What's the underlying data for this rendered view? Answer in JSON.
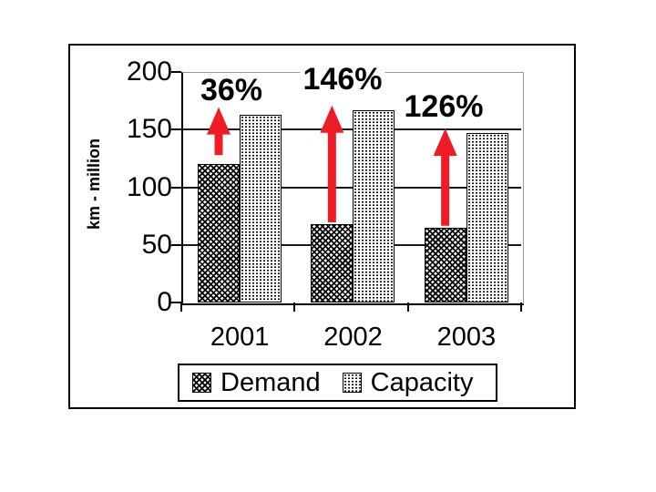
{
  "chart_data": {
    "type": "bar",
    "title": "",
    "categories": [
      "2001",
      "2002",
      "2003"
    ],
    "series": [
      {
        "name": "Demand",
        "values": [
          120,
          68,
          65
        ],
        "pattern": "dark-diagonal-crosshatch"
      },
      {
        "name": "Capacity",
        "values": [
          163,
          167,
          147
        ],
        "pattern": "light-dots"
      }
    ],
    "growth_labels": [
      "36%",
      "146%",
      "126%"
    ],
    "xlabel": "",
    "ylabel": "km - million",
    "yticks": [
      0,
      50,
      100,
      150,
      200
    ],
    "ylim": [
      0,
      200
    ],
    "grid": "horizontal",
    "legend_position": "bottom",
    "legend_entries": [
      "Demand",
      "Capacity"
    ],
    "colors": {
      "arrow": "#ee1c25",
      "text": "#000000",
      "gridline": "#1a1a1a",
      "plot_border": "#9a9a9a",
      "background": "#ffffff"
    }
  }
}
